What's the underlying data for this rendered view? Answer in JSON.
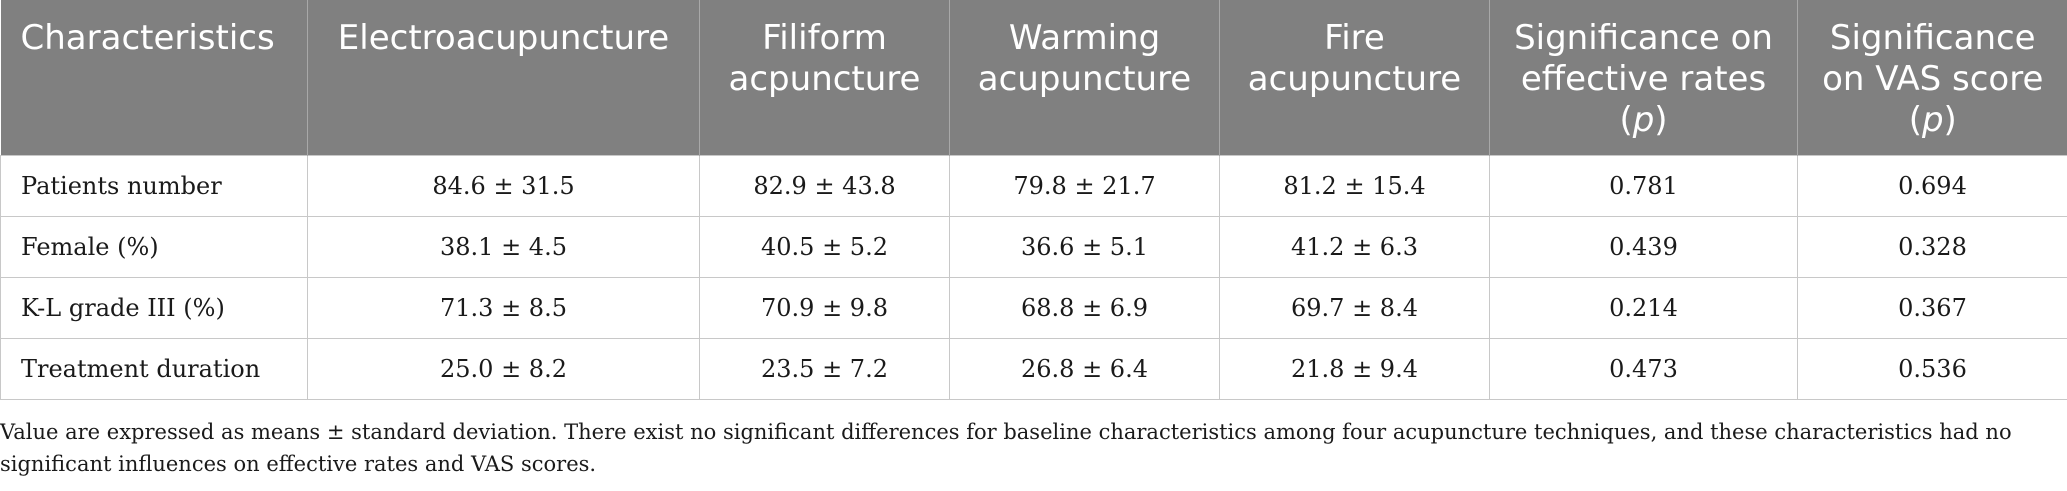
{
  "table": {
    "headers": [
      {
        "text": "Characteristics",
        "suffix": ""
      },
      {
        "text": "Electroacupuncture",
        "suffix": ""
      },
      {
        "text": "Filiform acpuncture",
        "suffix": ""
      },
      {
        "text": "Warming acupuncture",
        "suffix": ""
      },
      {
        "text": "Fire acupuncture",
        "suffix": ""
      },
      {
        "text": "Significance on effective rates",
        "suffix": "p"
      },
      {
        "text": "Significance on VAS score",
        "suffix": "p"
      }
    ],
    "rows": [
      [
        "Patients number",
        "84.6 ± 31.5",
        "82.9 ± 43.8",
        "79.8 ± 21.7",
        "81.2 ± 15.4",
        "0.781",
        "0.694"
      ],
      [
        "Female (%)",
        "38.1 ± 4.5",
        "40.5 ± 5.2",
        "36.6 ± 5.1",
        "41.2 ± 6.3",
        "0.439",
        "0.328"
      ],
      [
        "K-L grade III (%)",
        "71.3 ± 8.5",
        "70.9 ± 9.8",
        "68.8 ± 6.9",
        "69.7 ± 8.4",
        "0.214",
        "0.367"
      ],
      [
        "Treatment duration",
        "25.0 ± 8.2",
        "23.5 ± 7.2",
        "26.8 ± 6.4",
        "21.8 ± 9.4",
        "0.473",
        "0.536"
      ]
    ]
  },
  "footnote": "Value are expressed as means ± standard deviation. There exist no significant differences for baseline characteristics among four acupuncture techniques, and these characteristics had no significant influences on effective rates and VAS scores.",
  "colors": {
    "header_bg": "#808080",
    "header_text": "#ffffff",
    "grid": "#c8c8c8"
  }
}
